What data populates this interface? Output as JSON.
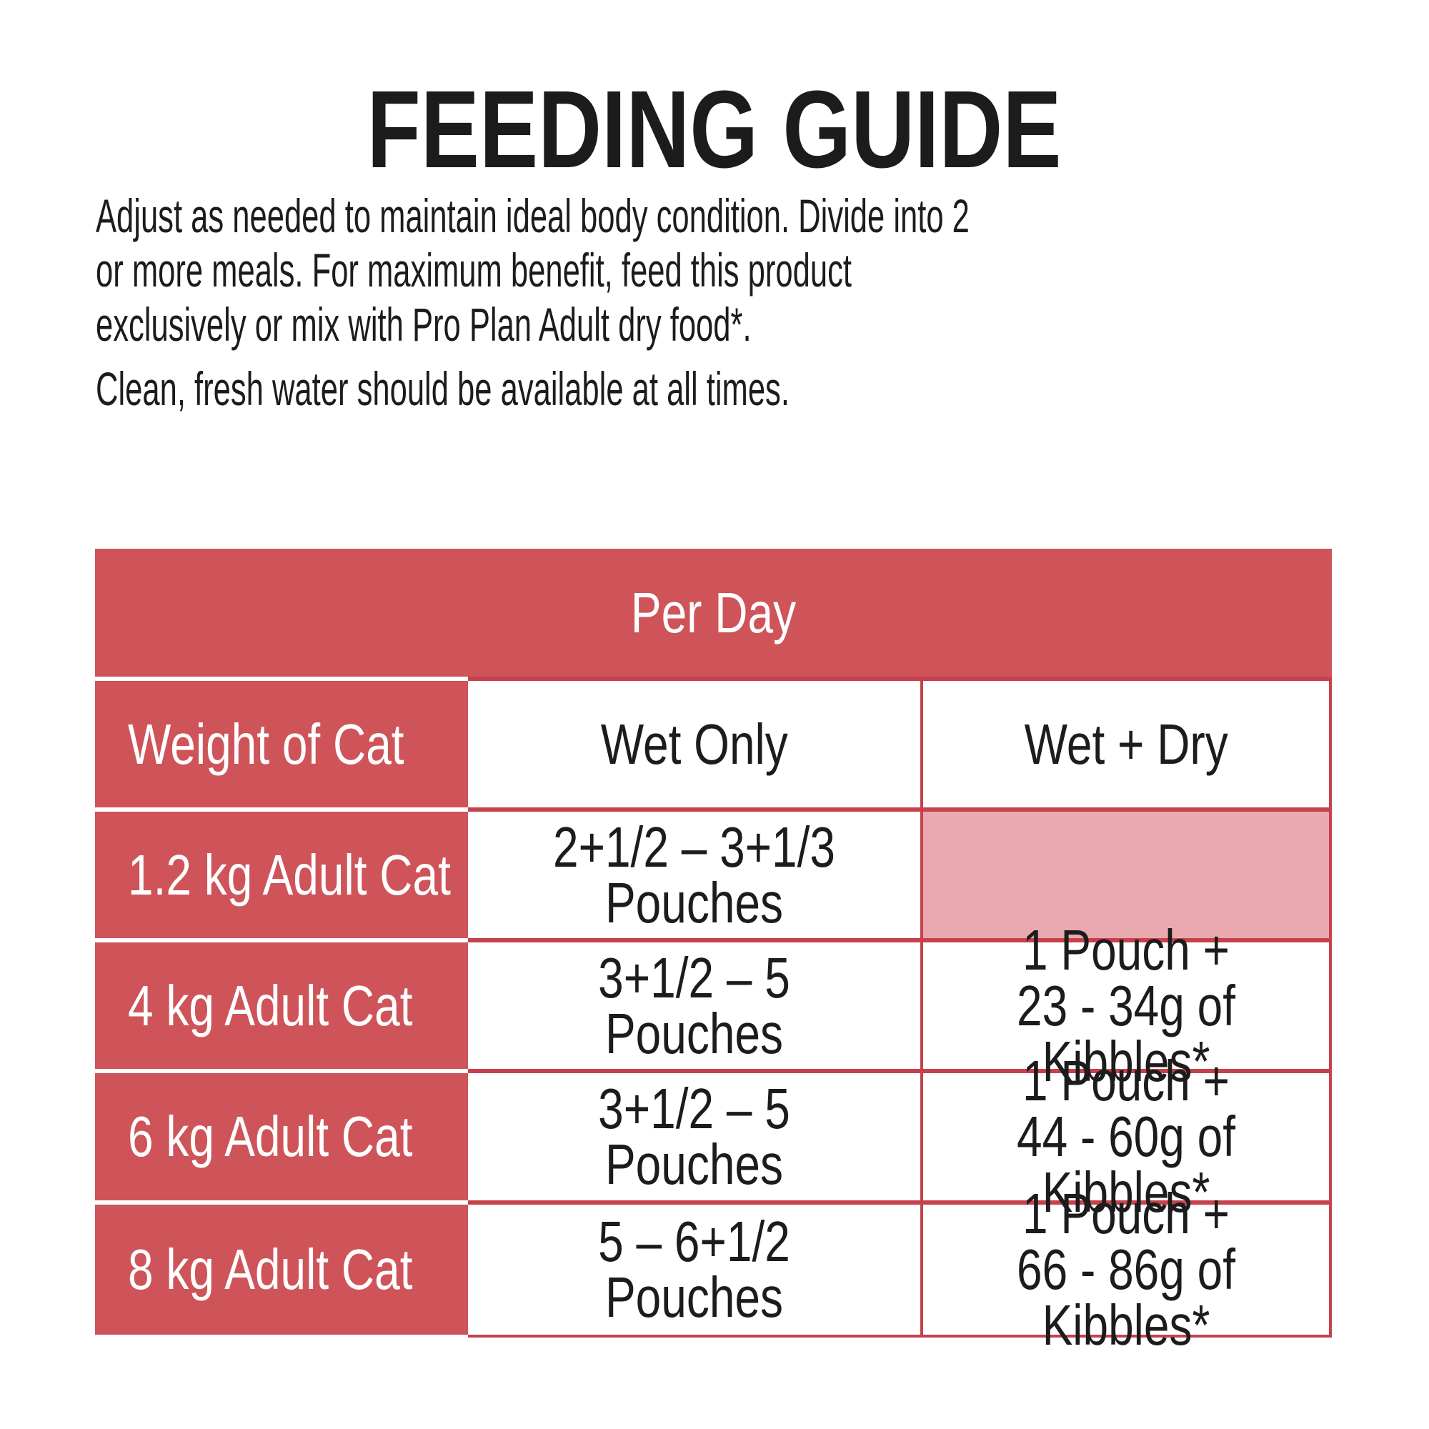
{
  "page": {
    "title": "FEEDING GUIDE",
    "intro": "Adjust as needed to maintain ideal body condition. Divide into 2\nor more meals. For maximum benefit, feed this product\nexclusively or mix with Pro Plan Adult dry food*.",
    "water_note": "Clean, fresh water should be available at all times."
  },
  "colors": {
    "accent_red": "#CE545A",
    "rule_red": "#C6414C",
    "light_pink": "#E9A9AE",
    "header_text": "#FFFFFF",
    "body_text": "#1C1C1C"
  },
  "table": {
    "span_header": "Per Day",
    "columns": [
      "Weight of Cat",
      "Wet Only",
      "Wet + Dry"
    ],
    "rows": [
      {
        "weight": "1.2 kg Adult Cat",
        "wet_only": "2+1/2 – 3+1/3 Pouches",
        "wet_dry": ""
      },
      {
        "weight": "4 kg Adult Cat",
        "wet_only": "3+1/2 – 5 Pouches",
        "wet_dry": "1 Pouch +\n23 - 34g of Kibbles*"
      },
      {
        "weight": "6 kg Adult Cat",
        "wet_only": "3+1/2 – 5 Pouches",
        "wet_dry": "1 Pouch +\n44 - 60g of Kibbles*"
      },
      {
        "weight": "8 kg Adult Cat",
        "wet_only": "5 – 6+1/2 Pouches",
        "wet_dry": "1 Pouch +\n66 - 86g of Kibbles*"
      }
    ]
  }
}
